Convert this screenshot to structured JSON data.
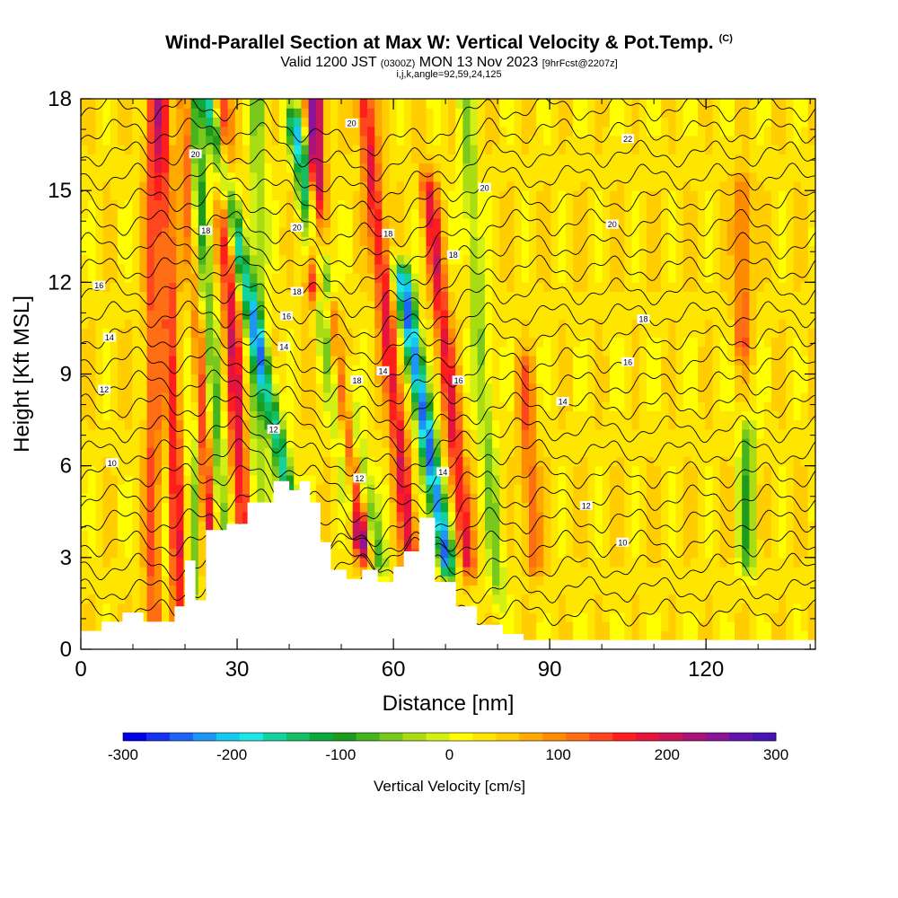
{
  "header": {
    "title": "Wind-Parallel Section at Max W: Vertical Velocity & Pot.Temp.",
    "title_mark": "(C)",
    "valid_label": "Valid 1200 JST",
    "valid_utc": "(0300Z)",
    "valid_date": "MON 13 Nov 2023",
    "forecast": "[9hrFcst@2207z]",
    "grid_info": "i,j,k,angle=92,59,24,125"
  },
  "chart_data": {
    "type": "heatmap",
    "xlabel": "Distance [nm]",
    "ylabel": "Height [Kft MSL]",
    "xlim": [
      0,
      141
    ],
    "ylim": [
      0,
      18
    ],
    "x_ticks": [
      0,
      30,
      60,
      90,
      120
    ],
    "y_ticks": [
      0,
      3,
      6,
      9,
      12,
      15,
      18
    ],
    "colorbar": {
      "label": "Vertical Velocity [cm/s]",
      "range": [
        -300,
        300
      ],
      "tick_labels": [
        -300,
        -200,
        -100,
        0,
        100,
        200,
        300
      ],
      "colors": [
        "#0000e6",
        "#1432f0",
        "#1e64f5",
        "#1e96f5",
        "#14c8f0",
        "#1ee6e6",
        "#14d2a0",
        "#14be64",
        "#0aaa3c",
        "#1e9b1e",
        "#46b41e",
        "#78c81e",
        "#aadc14",
        "#d2f014",
        "#ffff00",
        "#ffe600",
        "#ffcd00",
        "#ffaa00",
        "#ff8c00",
        "#ff6e14",
        "#ff461e",
        "#ff1e1e",
        "#e6143c",
        "#c8145a",
        "#aa1478",
        "#8c1496",
        "#6414aa",
        "#4614b4"
      ]
    },
    "velocity_features": [
      {
        "x": 14,
        "zmin": 0.5,
        "zmax": 18,
        "w": 110,
        "tilt": 0
      },
      {
        "x": 16,
        "zmin": 0.5,
        "zmax": 18,
        "w": -40,
        "tilt": 0
      },
      {
        "x": 19,
        "zmin": 0.8,
        "zmax": 18,
        "w": 140,
        "tilt": -0.2
      },
      {
        "x": 22,
        "zmin": 1.5,
        "zmax": 18,
        "w": -90,
        "tilt": 0
      },
      {
        "x": 25,
        "zmin": 2,
        "zmax": 18,
        "w": 160,
        "tilt": -0.3
      },
      {
        "x": 27.5,
        "zmin": 3,
        "zmax": 18,
        "w": -110,
        "tilt": -0.4
      },
      {
        "x": 31,
        "zmin": 4,
        "zmax": 18,
        "w": 150,
        "tilt": -0.3
      },
      {
        "x": 34,
        "zmin": 5,
        "zmax": 18,
        "w": -80,
        "tilt": 0
      },
      {
        "x": 45,
        "zmin": 12,
        "zmax": 18,
        "w": 230,
        "tilt": 0
      },
      {
        "x": 40,
        "zmin": 5,
        "zmax": 18,
        "w": -200,
        "tilt": -1.2
      },
      {
        "x": 54,
        "zmin": 3.5,
        "zmax": 11,
        "w": 220,
        "tilt": -0.8
      },
      {
        "x": 57,
        "zmin": 3,
        "zmax": 17,
        "w": -110,
        "tilt": -1.1
      },
      {
        "x": 52,
        "zmin": 5,
        "zmax": 17,
        "w": -130,
        "tilt": -0.9
      },
      {
        "x": 64,
        "zmin": 2,
        "zmax": 18,
        "w": 150,
        "tilt": -0.6
      },
      {
        "x": 70,
        "zmin": 3,
        "zmax": 12,
        "w": -290,
        "tilt": -0.9
      },
      {
        "x": 74,
        "zmin": 3,
        "zmax": 15,
        "w": 140,
        "tilt": -0.6
      },
      {
        "x": 80,
        "zmin": 2,
        "zmax": 18,
        "w": -80,
        "tilt": -0.4
      },
      {
        "x": 87,
        "zmin": 3,
        "zmax": 9,
        "w": 90,
        "tilt": -0.3
      },
      {
        "x": 128,
        "zmin": 3,
        "zmax": 7,
        "w": -110,
        "tilt": 0
      },
      {
        "x": 127,
        "zmin": 10,
        "zmax": 15,
        "w": 90,
        "tilt": 0
      }
    ],
    "terrain": [
      [
        0,
        0.6
      ],
      [
        4,
        0.6
      ],
      [
        4,
        0.9
      ],
      [
        8,
        0.9
      ],
      [
        8,
        1.2
      ],
      [
        12,
        1.2
      ],
      [
        12,
        0.9
      ],
      [
        18,
        0.9
      ],
      [
        18,
        1.4
      ],
      [
        20,
        1.4
      ],
      [
        20,
        2.9
      ],
      [
        22,
        2.9
      ],
      [
        22,
        1.6
      ],
      [
        24,
        1.6
      ],
      [
        24,
        3.9
      ],
      [
        28,
        3.9
      ],
      [
        28,
        4.1
      ],
      [
        32,
        4.1
      ],
      [
        32,
        4.8
      ],
      [
        37,
        4.8
      ],
      [
        37,
        5.5
      ],
      [
        40,
        5.5
      ],
      [
        40,
        5.2
      ],
      [
        42,
        5.2
      ],
      [
        42,
        5.5
      ],
      [
        44,
        5.5
      ],
      [
        44,
        4.8
      ],
      [
        46,
        4.8
      ],
      [
        46,
        3.5
      ],
      [
        48,
        3.5
      ],
      [
        48,
        2.6
      ],
      [
        51,
        2.6
      ],
      [
        51,
        2.3
      ],
      [
        54,
        2.3
      ],
      [
        54,
        2.6
      ],
      [
        57,
        2.6
      ],
      [
        57,
        2.2
      ],
      [
        60,
        2.2
      ],
      [
        60,
        2.7
      ],
      [
        62,
        2.7
      ],
      [
        62,
        3.2
      ],
      [
        65,
        3.2
      ],
      [
        65,
        4.3
      ],
      [
        68,
        4.3
      ],
      [
        68,
        2.2
      ],
      [
        72,
        2.2
      ],
      [
        72,
        1.4
      ],
      [
        76,
        1.4
      ],
      [
        76,
        0.8
      ],
      [
        81,
        0.8
      ],
      [
        81,
        0.5
      ],
      [
        85,
        0.5
      ],
      [
        85,
        0.3
      ],
      [
        141,
        0.3
      ],
      [
        141,
        0
      ]
    ],
    "theta_contour_levels": [
      10,
      12,
      14,
      16,
      18,
      20,
      22
    ],
    "theta_contour_labels": [
      {
        "text": "10",
        "x": 6,
        "y": 6.1
      },
      {
        "text": "12",
        "x": 4.5,
        "y": 8.5
      },
      {
        "text": "14",
        "x": 5.5,
        "y": 10.2
      },
      {
        "text": "16",
        "x": 3.5,
        "y": 11.9
      },
      {
        "text": "18",
        "x": 24,
        "y": 13.7
      },
      {
        "text": "20",
        "x": 22,
        "y": 16.2
      },
      {
        "text": "12",
        "x": 37,
        "y": 7.2
      },
      {
        "text": "14",
        "x": 39,
        "y": 9.9
      },
      {
        "text": "16",
        "x": 39.5,
        "y": 10.9
      },
      {
        "text": "18",
        "x": 41.5,
        "y": 11.7
      },
      {
        "text": "20",
        "x": 41.5,
        "y": 13.8
      },
      {
        "text": "20",
        "x": 52,
        "y": 17.2
      },
      {
        "text": "18",
        "x": 59,
        "y": 13.6
      },
      {
        "text": "18",
        "x": 53,
        "y": 8.8
      },
      {
        "text": "14",
        "x": 58,
        "y": 9.1
      },
      {
        "text": "12",
        "x": 53.5,
        "y": 5.6
      },
      {
        "text": "14",
        "x": 69.5,
        "y": 5.8
      },
      {
        "text": "16",
        "x": 72.5,
        "y": 8.8
      },
      {
        "text": "18",
        "x": 71.5,
        "y": 12.9
      },
      {
        "text": "20",
        "x": 77.5,
        "y": 15.1
      },
      {
        "text": "20",
        "x": 102,
        "y": 13.9
      },
      {
        "text": "22",
        "x": 105,
        "y": 16.7
      },
      {
        "text": "18",
        "x": 108,
        "y": 10.8
      },
      {
        "text": "16",
        "x": 105,
        "y": 9.4
      },
      {
        "text": "14",
        "x": 92.5,
        "y": 8.1
      },
      {
        "text": "12",
        "x": 97,
        "y": 4.7
      },
      {
        "text": "10",
        "x": 104,
        "y": 3.5
      }
    ]
  }
}
